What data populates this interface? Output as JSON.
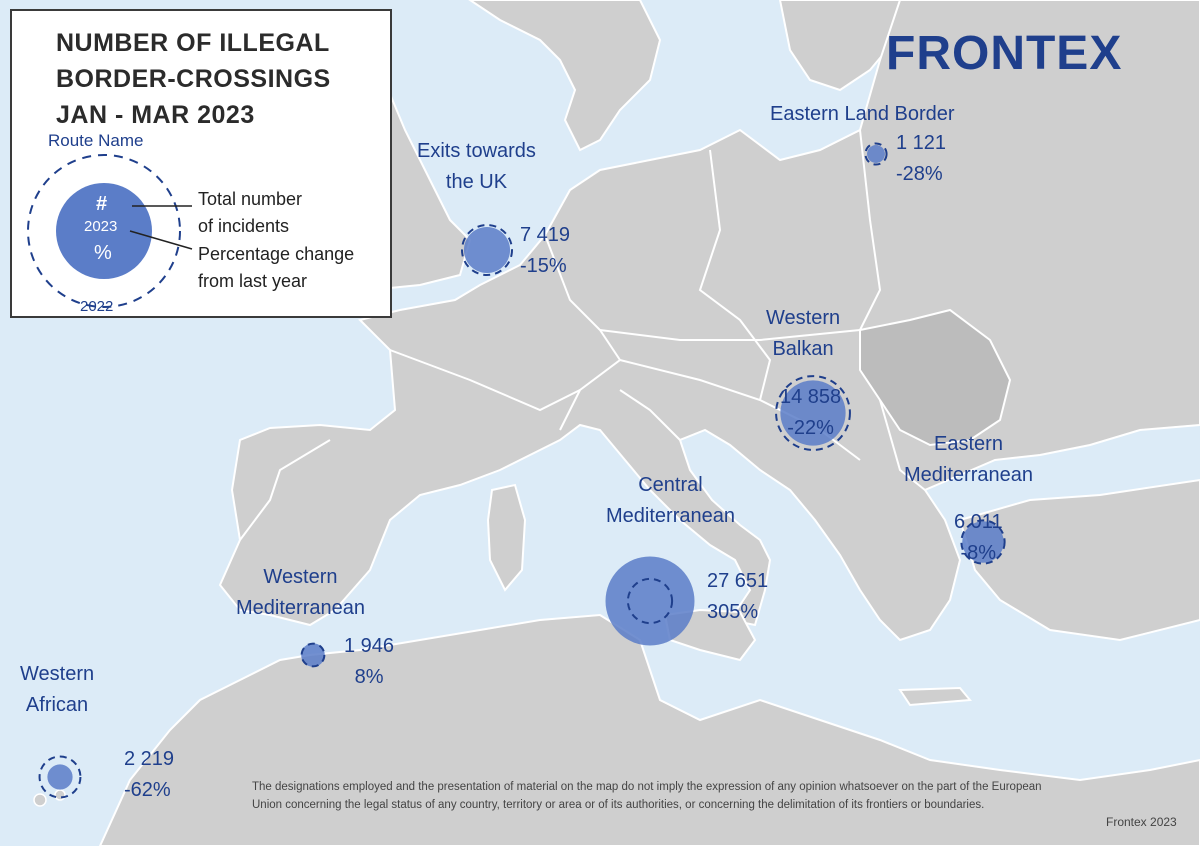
{
  "legend": {
    "title_lines": [
      "NUMBER OF ILLEGAL",
      "BORDER-CROSSINGS",
      "JAN - MAR 2023"
    ],
    "route_name": "Route Name",
    "hash": "#",
    "year_current": "2023",
    "percent": "%",
    "year_previous": "2022",
    "desc_total": [
      "Total number",
      "of incidents"
    ],
    "desc_change": [
      "Percentage change",
      "from last year"
    ]
  },
  "logo": {
    "text": "FRONTEX",
    "color": "#1f3f8c"
  },
  "colors": {
    "sea": "#dcebf7",
    "land": "#cfcfcf",
    "bubble": "#5b7dc8",
    "ink": "#1f3f8c"
  },
  "routes": [
    {
      "id": "western-african",
      "name_lines": [
        "Western",
        "African"
      ],
      "total": "2 219",
      "change": "-62%",
      "total_2023": 2219,
      "change_pct": -62
    },
    {
      "id": "western-mediterranean",
      "name_lines": [
        "Western",
        "Mediterranean"
      ],
      "total": "1 946",
      "change": "8%",
      "total_2023": 1946,
      "change_pct": 8
    },
    {
      "id": "central-mediterranean",
      "name_lines": [
        "Central",
        "Mediterranean"
      ],
      "total": "27 651",
      "change": "305%",
      "total_2023": 27651,
      "change_pct": 305
    },
    {
      "id": "western-balkan",
      "name_lines": [
        "Western",
        "Balkan"
      ],
      "total": "14 858",
      "change": "-22%",
      "total_2023": 14858,
      "change_pct": -22
    },
    {
      "id": "eastern-mediterranean",
      "name_lines": [
        "Eastern",
        "Mediterranean"
      ],
      "total": "6 011",
      "change": "-8%",
      "total_2023": 6011,
      "change_pct": -8
    },
    {
      "id": "exits-uk",
      "name_lines": [
        "Exits towards",
        "the UK"
      ],
      "total": "7 419",
      "change": "-15%",
      "total_2023": 7419,
      "change_pct": -15
    },
    {
      "id": "eastern-land-border",
      "name_lines": [
        "Eastern Land Border"
      ],
      "total": "1 121",
      "change": "-28%",
      "total_2023": 1121,
      "change_pct": -28
    }
  ],
  "disclaimer": "The designations employed and the presentation of material on the map do not imply the expression of any opinion whatsoever on the part of the European Union concerning the legal status of any country, territory or area or of its authorities, or concerning the delimitation of its frontiers or boundaries.",
  "credit": "Frontex 2023"
}
